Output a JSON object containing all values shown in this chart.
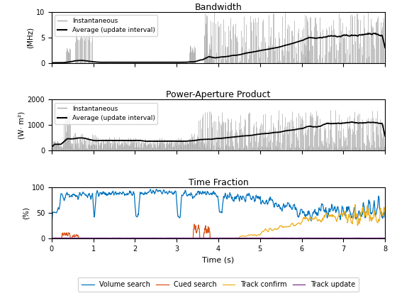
{
  "title1": "Bandwidth",
  "title2": "Power-Aperture Product",
  "title3": "Time Fraction",
  "ylabel1": "(MHz)",
  "ylabel2": "(W· m²)",
  "ylabel3": "(%)",
  "xlabel3": "Time (s)",
  "ylim1": [
    0,
    10
  ],
  "ylim2": [
    0,
    2000
  ],
  "ylim3": [
    0,
    100
  ],
  "xlim": [
    0,
    8
  ],
  "legend1": [
    "Instantaneous",
    "Average (update interval)"
  ],
  "legend2": [
    "Instantaneous",
    "Average (update interval)"
  ],
  "legend3": [
    "Volume search",
    "Cued search",
    "Track confirm",
    "Track update"
  ],
  "colors3": [
    "#0072BD",
    "#D95319",
    "#EDB120",
    "#7E2F8E"
  ],
  "inst_color": "#AAAAAA",
  "avg_color": "#000000",
  "bg_color": "#FFFFFF"
}
